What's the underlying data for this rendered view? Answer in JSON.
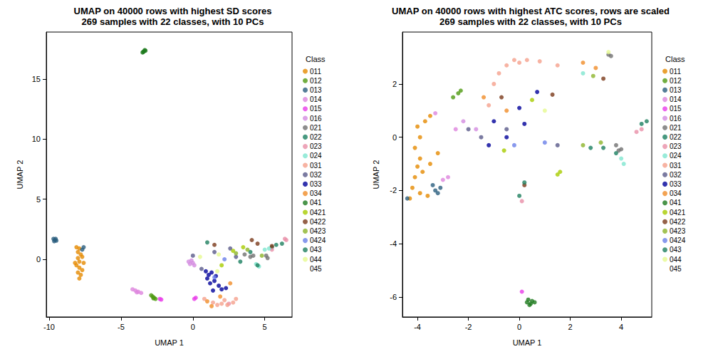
{
  "chart_data": [
    {
      "type": "scatter",
      "title": "UMAP on 40000 rows with highest SD scores",
      "subtitle": "269 samples with 22 classes, with 10 PCs",
      "x_label": "UMAP 1",
      "y_label": "UMAP 2",
      "legend_title": "Class",
      "legend": "right",
      "grid": false,
      "marker": "circle",
      "xlim": [
        -10.2,
        6.9
      ],
      "ylim": [
        -4.8,
        18.9
      ],
      "xticks": [
        -10,
        -5,
        0,
        5
      ],
      "yticks": [
        0,
        5,
        10,
        15
      ],
      "series": [
        {
          "name": "011",
          "color": "#E58A00",
          "values": [
            [
              -8.1,
              1.0
            ],
            [
              -7.9,
              0.9
            ],
            [
              -8.0,
              0.6
            ],
            [
              -7.8,
              0.4
            ],
            [
              -7.7,
              0.2
            ],
            [
              -8.0,
              0.1
            ],
            [
              -7.9,
              -0.2
            ],
            [
              -7.6,
              -0.3
            ],
            [
              -8.1,
              -0.5
            ],
            [
              -7.9,
              -0.7
            ],
            [
              -7.7,
              -0.9
            ],
            [
              -8.0,
              -1.1
            ],
            [
              -7.8,
              -1.3
            ],
            [
              -7.9,
              -1.6
            ],
            [
              -8.2,
              -0.3
            ]
          ]
        },
        {
          "name": "012",
          "color": "#4F9A12",
          "values": [
            [
              -2.9,
              -3.0
            ],
            [
              -2.8,
              -3.1
            ],
            [
              -2.7,
              -3.2
            ],
            [
              -2.6,
              -3.3
            ],
            [
              -2.75,
              -3.25
            ]
          ]
        },
        {
          "name": "013",
          "color": "#2A5E7E",
          "values": [
            [
              -9.7,
              1.7
            ],
            [
              -9.6,
              1.6
            ],
            [
              -9.5,
              1.55
            ],
            [
              -9.65,
              1.5
            ],
            [
              -9.55,
              1.7
            ],
            [
              -7.6,
              1.0
            ],
            [
              -7.7,
              0.8
            ]
          ]
        },
        {
          "name": "014",
          "color": "#DD85DD",
          "values": [
            [
              -4.2,
              -2.5
            ],
            [
              -4.0,
              -2.6
            ],
            [
              -3.8,
              -2.7
            ],
            [
              -3.6,
              -2.8
            ],
            [
              -3.9,
              -2.75
            ]
          ]
        },
        {
          "name": "015",
          "color": "#E83CE8",
          "values": [
            [
              -2.3,
              -3.3
            ],
            [
              -2.2,
              -3.35
            ],
            [
              0.1,
              -3.3
            ],
            [
              0.2,
              -3.2
            ]
          ]
        },
        {
          "name": "016",
          "color": "#D38BE0",
          "values": [
            [
              -0.3,
              -0.2
            ],
            [
              -0.2,
              -0.4
            ],
            [
              -0.1,
              -0.1
            ],
            [
              0.1,
              -0.5
            ],
            [
              0.0,
              -0.3
            ]
          ]
        },
        {
          "name": "021",
          "color": "#707070",
          "values": [
            [
              4.0,
              0.2
            ],
            [
              4.2,
              0.3
            ],
            [
              5.1,
              0.3
            ],
            [
              5.2,
              0.1
            ],
            [
              3.6,
              0.4
            ]
          ]
        },
        {
          "name": "022",
          "color": "#1A8060",
          "values": [
            [
              4.0,
              0.6
            ],
            [
              5.5,
              1.0
            ],
            [
              5.8,
              1.2
            ],
            [
              3.3,
              -0.2
            ]
          ]
        },
        {
          "name": "023",
          "color": "#E98FA8",
          "values": [
            [
              6.5,
              1.6
            ],
            [
              6.4,
              1.7
            ],
            [
              5.5,
              0.8
            ],
            [
              2.5,
              -3.7
            ]
          ]
        },
        {
          "name": "024",
          "color": "#7FE6D0",
          "values": [
            [
              5.0,
              0.8
            ],
            [
              5.3,
              0.9
            ],
            [
              4.4,
              -0.4
            ],
            [
              4.6,
              -0.6
            ]
          ]
        },
        {
          "name": "031",
          "color": "#F5A08C",
          "values": [
            [
              0.8,
              -3.3
            ],
            [
              1.4,
              -3.6
            ],
            [
              1.7,
              -3.8
            ],
            [
              2.0,
              -3.7
            ],
            [
              2.4,
              -3.8
            ],
            [
              2.8,
              -3.6
            ],
            [
              3.0,
              -3.3
            ],
            [
              2.2,
              -3.4
            ]
          ]
        },
        {
          "name": "032",
          "color": "#5A5A8A",
          "values": [
            [
              0.0,
              0.3
            ],
            [
              1.5,
              0.6
            ],
            [
              3.0,
              0.2
            ],
            [
              2.6,
              0.9
            ],
            [
              0.6,
              -0.8
            ]
          ]
        },
        {
          "name": "033",
          "color": "#00009A",
          "values": [
            [
              0.9,
              -1.0
            ],
            [
              1.1,
              -1.3
            ],
            [
              1.3,
              -1.1
            ],
            [
              1.0,
              -1.6
            ],
            [
              1.5,
              -1.8
            ],
            [
              1.2,
              -2.0
            ],
            [
              1.8,
              -2.2
            ],
            [
              2.0,
              -2.5
            ],
            [
              1.4,
              -2.6
            ],
            [
              2.3,
              -2.4
            ],
            [
              1.6,
              -1.4
            ]
          ]
        },
        {
          "name": "034",
          "color": "#F08C28",
          "values": [
            [
              1.0,
              -3.5
            ],
            [
              1.3,
              -3.9
            ],
            [
              2.6,
              -2.0
            ],
            [
              1.9,
              -3.1
            ]
          ]
        },
        {
          "name": "041",
          "color": "#1E7A1E",
          "values": [
            [
              -3.5,
              17.2
            ],
            [
              -3.4,
              17.3
            ],
            [
              -3.3,
              17.35
            ],
            [
              -3.45,
              17.25
            ],
            [
              -3.35,
              17.4
            ]
          ]
        },
        {
          "name": "0421",
          "color": "#A8CC00",
          "values": [
            [
              2.0,
              -0.5
            ],
            [
              3.5,
              1.0
            ],
            [
              2.8,
              0.7
            ]
          ]
        },
        {
          "name": "0422",
          "color": "#7A3A1A",
          "values": [
            [
              4.5,
              1.3
            ],
            [
              1.5,
              1.2
            ],
            [
              5.5,
              1.1
            ],
            [
              4.1,
              1.6
            ]
          ]
        },
        {
          "name": "0423",
          "color": "#8CB42A",
          "values": [
            [
              3.0,
              0.5
            ],
            [
              4.8,
              0.3
            ],
            [
              3.8,
              0.8
            ]
          ]
        },
        {
          "name": "0424",
          "color": "#6A7FE8",
          "values": [
            [
              1.5,
              -1.5
            ],
            [
              2.2,
              0.0
            ]
          ]
        },
        {
          "name": "043",
          "color": "#1F7F5F",
          "values": [
            [
              4.5,
              -0.5
            ],
            [
              1.0,
              1.4
            ],
            [
              6.2,
              1.3
            ]
          ]
        },
        {
          "name": "044",
          "color": "#E6FA90",
          "values": [
            [
              0.5,
              0.2
            ],
            [
              1.7,
              -1.0
            ],
            [
              1.8,
              0.4
            ]
          ]
        },
        {
          "name": "045",
          "color": "#FFFFFF",
          "values": []
        }
      ]
    },
    {
      "type": "scatter",
      "title": "UMAP on 40000 rows with highest ATC scores, rows are scaled",
      "subtitle": "269 samples with 22 classes, with 10 PCs",
      "x_label": "UMAP 1",
      "y_label": "UMAP 2",
      "legend_title": "Class",
      "legend": "right",
      "grid": false,
      "marker": "circle",
      "xlim": [
        -4.59,
        5.2
      ],
      "ylim": [
        -6.75,
        3.95
      ],
      "xticks": [
        -4,
        -2,
        0,
        2,
        4
      ],
      "yticks": [
        -6,
        -4,
        -2,
        0,
        2
      ],
      "series": [
        {
          "name": "011",
          "color": "#E58A00",
          "values": [
            [
              -4.3,
              -2.3
            ],
            [
              -4.2,
              -1.9
            ],
            [
              -4.1,
              -1.5
            ],
            [
              -4.0,
              -1.1
            ],
            [
              -3.9,
              -0.8
            ],
            [
              -4.1,
              -0.4
            ],
            [
              -3.9,
              0.0
            ],
            [
              -4.0,
              0.4
            ],
            [
              -3.7,
              0.6
            ],
            [
              -3.5,
              0.8
            ],
            [
              -3.8,
              -1.3
            ],
            [
              -3.5,
              -1.0
            ],
            [
              -3.2,
              -0.6
            ],
            [
              -3.6,
              -2.2
            ],
            [
              -3.9,
              -2.1
            ]
          ]
        },
        {
          "name": "012",
          "color": "#4F9A12",
          "values": [
            [
              -2.6,
              1.5
            ],
            [
              -2.4,
              1.65
            ],
            [
              -2.3,
              1.75
            ]
          ]
        },
        {
          "name": "013",
          "color": "#2A5E7E",
          "values": [
            [
              -4.4,
              -2.3
            ],
            [
              -3.3,
              -2.0
            ],
            [
              -3.4,
              -1.8
            ],
            [
              -3.2,
              -2.1
            ],
            [
              -3.1,
              -1.9
            ]
          ]
        },
        {
          "name": "014",
          "color": "#DD85DD",
          "values": [
            [
              -2.5,
              0.3
            ],
            [
              -3.0,
              -1.6
            ],
            [
              -3.3,
              0.9
            ],
            [
              -2.8,
              -1.5
            ]
          ]
        },
        {
          "name": "015",
          "color": "#E83CE8",
          "values": [
            [
              0.1,
              -5.8
            ]
          ]
        },
        {
          "name": "016",
          "color": "#D38BE0",
          "values": [
            [
              -2.2,
              0.6
            ],
            [
              -1.7,
              0.3
            ]
          ]
        },
        {
          "name": "021",
          "color": "#707070",
          "values": [
            [
              3.5,
              3.1
            ],
            [
              3.6,
              3.05
            ],
            [
              3.8,
              -0.3
            ],
            [
              3.9,
              -0.5
            ],
            [
              4.0,
              -0.45
            ]
          ]
        },
        {
          "name": "022",
          "color": "#1A8060",
          "values": [
            [
              4.8,
              0.5
            ],
            [
              3.8,
              -0.6
            ],
            [
              2.8,
              -0.4
            ]
          ]
        },
        {
          "name": "023",
          "color": "#E98FA8",
          "values": [
            [
              4.6,
              0.2
            ],
            [
              4.8,
              0.3
            ],
            [
              0.1,
              -2.4
            ]
          ]
        },
        {
          "name": "024",
          "color": "#7FE6D0",
          "values": [
            [
              4.0,
              -0.8
            ],
            [
              4.1,
              -1.0
            ],
            [
              2.5,
              2.4
            ]
          ]
        },
        {
          "name": "031",
          "color": "#F5A08C",
          "values": [
            [
              -1.0,
              2.0
            ],
            [
              -0.8,
              2.4
            ],
            [
              -0.5,
              2.7
            ],
            [
              0.0,
              2.8
            ],
            [
              0.3,
              2.9
            ],
            [
              -1.2,
              1.2
            ],
            [
              1.5,
              2.7
            ],
            [
              -0.2,
              2.9
            ],
            [
              0.8,
              2.85
            ]
          ]
        },
        {
          "name": "032",
          "color": "#5A5A8A",
          "values": [
            [
              -1.5,
              0.0
            ],
            [
              -0.5,
              0.3
            ],
            [
              1.5,
              -0.3
            ],
            [
              -2.0,
              0.3
            ]
          ]
        },
        {
          "name": "033",
          "color": "#00009A",
          "values": [
            [
              -1.0,
              0.6
            ],
            [
              -0.5,
              0.0
            ],
            [
              0.2,
              0.5
            ],
            [
              0.7,
              1.7
            ],
            [
              -1.2,
              -0.3
            ],
            [
              0.0,
              1.1
            ]
          ]
        },
        {
          "name": "034",
          "color": "#F08C28",
          "values": [
            [
              -0.5,
              1.0
            ],
            [
              2.5,
              2.8
            ],
            [
              3.0,
              2.6
            ],
            [
              -1.4,
              1.5
            ]
          ]
        },
        {
          "name": "041",
          "color": "#1E7A1E",
          "values": [
            [
              0.3,
              -6.2
            ],
            [
              0.4,
              -6.3
            ],
            [
              0.5,
              -6.15
            ],
            [
              0.45,
              -6.25
            ],
            [
              0.35,
              -6.1
            ],
            [
              0.6,
              -6.2
            ]
          ]
        },
        {
          "name": "0421",
          "color": "#A8CC00",
          "values": [
            [
              1.5,
              -1.4
            ],
            [
              0.5,
              1.4
            ],
            [
              -0.6,
              -0.5
            ],
            [
              1.6,
              -1.3
            ]
          ]
        },
        {
          "name": "0422",
          "color": "#7A3A1A",
          "values": [
            [
              1.3,
              1.6
            ],
            [
              3.3,
              2.2
            ],
            [
              -0.7,
              1.5
            ],
            [
              0.2,
              -1.8
            ]
          ]
        },
        {
          "name": "0423",
          "color": "#8CB42A",
          "values": [
            [
              2.5,
              -0.3
            ],
            [
              3.2,
              -0.2
            ],
            [
              2.9,
              2.3
            ]
          ]
        },
        {
          "name": "0424",
          "color": "#6A7FE8",
          "values": [
            [
              1.0,
              -0.2
            ],
            [
              -0.2,
              -0.3
            ]
          ]
        },
        {
          "name": "043",
          "color": "#1F7F5F",
          "values": [
            [
              0.0,
              -2.2
            ],
            [
              0.2,
              -1.7
            ],
            [
              3.3,
              -0.4
            ],
            [
              5.0,
              0.6
            ]
          ]
        },
        {
          "name": "044",
          "color": "#E6FA90",
          "values": [
            [
              1.0,
              1.0
            ],
            [
              3.5,
              3.2
            ]
          ]
        },
        {
          "name": "045",
          "color": "#FFFFFF",
          "values": []
        }
      ]
    }
  ]
}
